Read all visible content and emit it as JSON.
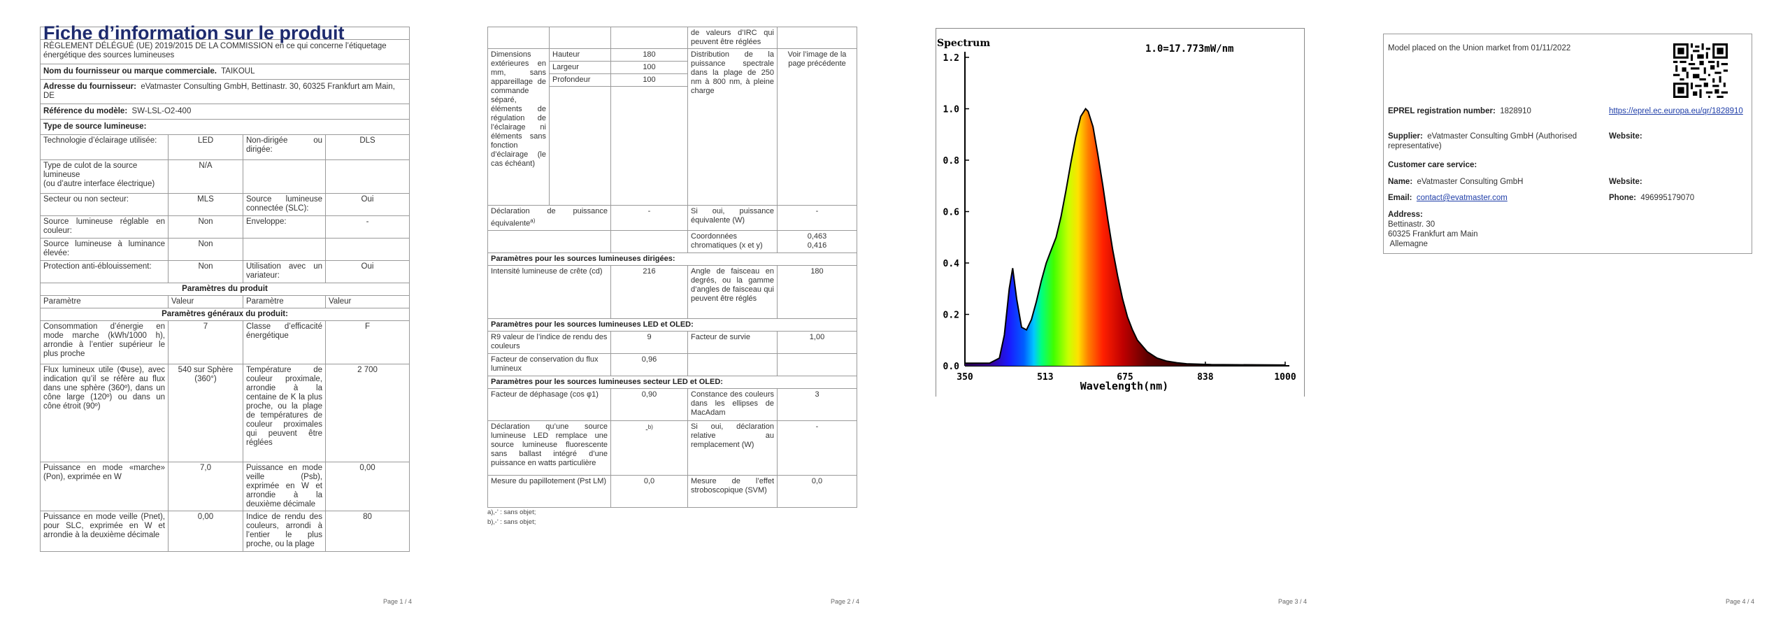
{
  "page1": {
    "title": "Fiche d’information sur le produit",
    "regulation": "RÈGLEMENT DÉLÉGUÉ (UE) 2019/2015 DE LA COMMISSION en ce qui concerne l’étiquetage énergétique des sources lumineuses",
    "supplier_label": "Nom du fournisseur ou marque commerciale.",
    "supplier_value": "TAIKOUL",
    "address_label": "Adresse du fournisseur:",
    "address_value": "eVatmaster Consulting GmbH, Bettinastr. 30, 60325 Frankfurt am Main, DE",
    "model_label": "Référence du modèle:",
    "model_value": "SW-LSL-O2-400",
    "type_heading": "Type de source lumineuse:",
    "rows": [
      {
        "l1": "Technologie d’éclairage utilisée:",
        "v1": "LED",
        "l2": "Non-dirigée ou dirigée:",
        "v2": "DLS"
      },
      {
        "l1": "Type de culot de la source lumineuse\n(ou d’autre interface électrique)",
        "v1": "N/A",
        "l2": "",
        "v2": ""
      },
      {
        "l1": "Secteur ou non secteur:",
        "v1": "MLS",
        "l2": "Source lumineuse connectée (SLC):",
        "v2": "Oui"
      },
      {
        "l1": "Source lumineuse réglable en couleur:",
        "v1": "Non",
        "l2": "Enveloppe:",
        "v2": "-"
      },
      {
        "l1": "Source lumineuse à luminance élevée:",
        "v1": "Non",
        "l2": "",
        "v2": ""
      },
      {
        "l1": "Protection anti-éblouissement:",
        "v1": "Non",
        "l2": "Utilisation avec un variateur:",
        "v2": "Oui"
      }
    ],
    "params_heading": "Paramètres du produit",
    "col_param": "Paramètre",
    "col_value": "Valeur",
    "general_heading": "Paramètres généraux du produit:",
    "prows": [
      {
        "l1": "Consommation d’énergie en mode marche (kWh/1000 h), arrondie à l’entier supérieur le plus proche",
        "v1": "7",
        "l2": "Classe d’efficacité énergétique",
        "v2": "F"
      },
      {
        "l1": "Flux lumineux utile (Φuse), avec indication qu’il se réfère au flux dans une sphère (360º), dans un cône large (120º) ou dans un cône étroit (90º)",
        "v1": "540 sur Sphère (360°)",
        "l2": "Température de couleur proximale, arrondie à la centaine de K la plus proche, ou la plage de températures de couleur proximales qui peuvent être réglées",
        "v2": "2 700"
      },
      {
        "l1": "Puissance en mode «marche» (Pon), exprimée en W",
        "v1": "7,0",
        "l2": "Puissance en mode veille (Psb), exprimée en W et arrondie à la deuxième décimale",
        "v2": "0,00"
      },
      {
        "l1": "Puissance en mode veille (Pnet), pour SLC, exprimée en W et arrondie à la deuxième décimale",
        "v1": "0,00",
        "l2": "Indice de rendu des couleurs, arrondi à l’entier le plus proche, ou la plage",
        "v2": "80"
      }
    ],
    "page_num": "Page 1 / 4"
  },
  "page2": {
    "cont": "de valeurs d’IRC qui peuvent être réglées",
    "dim_label": "Dimensions extérieures en mm, sans appareillage de commande séparé, éléments de régulation de l’éclairage ni éléments sans fonction d’éclairage (le cas échéant)",
    "dims": [
      {
        "name": "Hauteur",
        "value": "180"
      },
      {
        "name": "Largeur",
        "value": "100"
      },
      {
        "name": "Profondeur",
        "value": "100"
      }
    ],
    "spd_label": "Distribution de la puissance spectrale dans la plage de 250 nm à 800 nm, à pleine charge",
    "spd_value": "Voir l’image de la page précédente",
    "equiv_label": "Déclaration de puissance équivalente",
    "equiv_sup": "a)",
    "equiv_value": "-",
    "equiv2_label": "Si oui, puissance équivalente (W)",
    "equiv2_value": "-",
    "chroma_label": "Coordonnées chromatiques (x et y)",
    "chroma_x": "0,463",
    "chroma_y": "0,416",
    "dir_heading": "Paramètres pour les sources lumineuses dirigées:",
    "peak_label": "Intensité lumineuse de crête (cd)",
    "peak_value": "216",
    "beam_label": "Angle de faisceau en degrés, ou la gamme d’angles de faisceau qui peuvent être réglés",
    "beam_value": "180",
    "led_heading": "Paramètres pour les sources lumineuses LED et OLED:",
    "r9_label": "R9 valeur de l’indice de rendu des couleurs",
    "r9_value": "9",
    "surv_label": "Facteur de survie",
    "surv_value": "1,00",
    "lum_label": "Facteur de conservation du flux lumineux",
    "lum_value": "0,96",
    "mains_heading": "Paramètres pour les sources lumineuses secteur LED et OLED:",
    "pf_label": "Facteur de déphasage (cos φ1)",
    "pf_value": "0,90",
    "mac_label": "Constance des couleurs dans les ellipses de MacAdam",
    "mac_value": "3",
    "repl_label": "Déclaration qu’une source lumineuse LED remplace une source lumineuse fluorescente sans ballast intégré d’une puissance en watts particulière",
    "repl_value": "-",
    "repl_sup": "b)",
    "repl2_label": "Si oui, déclaration relative au remplacement (W)",
    "repl2_value": "-",
    "pst_label": "Mesure du papillotement (Pst LM)",
    "pst_value": "0,0",
    "svm_label": "Mesure de l’effet stroboscopique (SVM)",
    "svm_value": "0,0",
    "note_a": "a)‚-’ : sans objet;",
    "note_b": "b)‚-’ : sans objet;",
    "page_num": "Page 2 / 4"
  },
  "page3": {
    "page_num": "Page 3 / 4",
    "chart_data": {
      "type": "line",
      "title": "Spectrum",
      "subtitle": "1.0=17.773mW/nm",
      "xlabel": "Wavelength(nm)",
      "ylabel": "",
      "xlim": [
        350,
        1000
      ],
      "ylim": [
        0,
        1.2
      ],
      "xticks": [
        "350",
        "513",
        "675",
        "838",
        "1000"
      ],
      "yticks": [
        "0.0",
        "0.2",
        "0.4",
        "0.6",
        "0.8",
        "1.0",
        "1.2"
      ],
      "grid": false,
      "series": [
        {
          "x": [
            350,
            380,
            400,
            420,
            430,
            440,
            447,
            455,
            465,
            475,
            485,
            495,
            505,
            515,
            525,
            535,
            545,
            555,
            565,
            575,
            585,
            595,
            600,
            610,
            620,
            630,
            640,
            650,
            660,
            670,
            680,
            690,
            700,
            720,
            740,
            760,
            780,
            800,
            850,
            900,
            1000
          ],
          "y": [
            0.01,
            0.01,
            0.01,
            0.03,
            0.12,
            0.3,
            0.38,
            0.26,
            0.15,
            0.14,
            0.18,
            0.25,
            0.33,
            0.4,
            0.45,
            0.5,
            0.58,
            0.68,
            0.79,
            0.89,
            0.97,
            1.0,
            0.99,
            0.93,
            0.82,
            0.7,
            0.57,
            0.45,
            0.35,
            0.26,
            0.19,
            0.14,
            0.1,
            0.055,
            0.03,
            0.018,
            0.012,
            0.008,
            0.005,
            0.004,
            0.003
          ]
        }
      ]
    }
  },
  "page4": {
    "market": "Model placed on the Union market from 01/11/2022",
    "eprel_label": "EPREL registration number:",
    "eprel_value": "1828910",
    "eprel_link": "https://eprel.ec.europa.eu/qr/1828910",
    "supplier_label": "Supplier:",
    "supplier_value": "eVatmaster Consulting GmbH (Authorised representative)",
    "website_label": "Website:",
    "care_heading": "Customer care service:",
    "name_label": "Name:",
    "name_value": "eVatmaster Consulting GmbH",
    "website2_label": "Website:",
    "email_label": "Email:",
    "email_value": "contact@evatmaster.com",
    "phone_label": "Phone:",
    "phone_value": "496995179070",
    "address_label": "Address:",
    "address_lines": [
      "Bettinastr. 30",
      "60325 Frankfurt am Main",
      " Allemagne"
    ],
    "page_num": "Page 4 / 4"
  }
}
